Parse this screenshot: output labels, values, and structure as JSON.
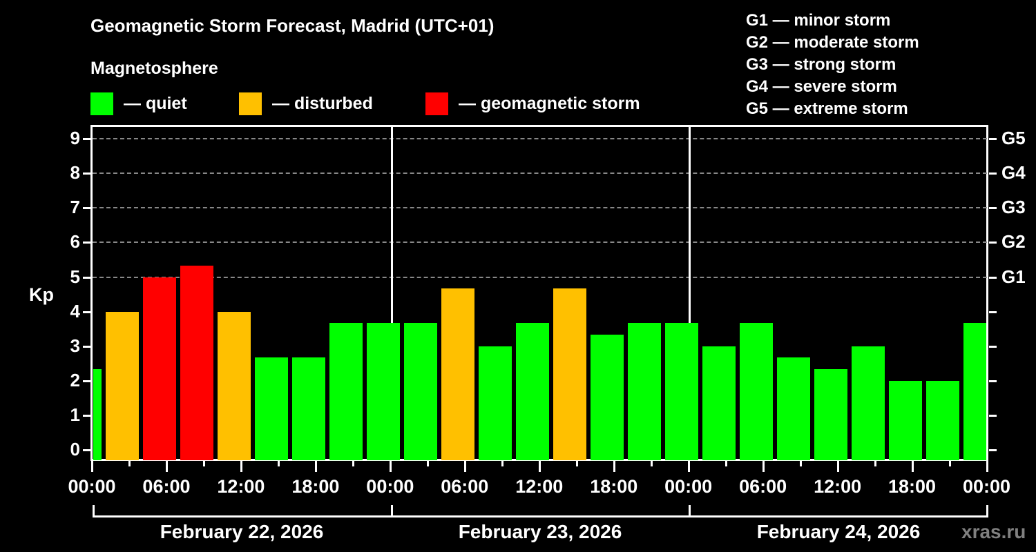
{
  "header": {
    "title": "Geomagnetic Storm Forecast, Madrid (UTC+01)",
    "subtitle": "Magnetosphere"
  },
  "legend": [
    {
      "label": "— quiet",
      "color": "#00ff00"
    },
    {
      "label": "— disturbed",
      "color": "#ffc000"
    },
    {
      "label": "— geomagnetic storm",
      "color": "#ff0000"
    }
  ],
  "g_legend": [
    "G1 — minor storm",
    "G2 — moderate storm",
    "G3 — strong storm",
    "G4 — severe storm",
    "G5 — extreme storm"
  ],
  "watermark": "xras.ru",
  "chart_data": {
    "type": "bar",
    "title": "Geomagnetic Storm Forecast, Madrid (UTC+01)",
    "xlabel": "",
    "ylabel": "Kp",
    "ylim": [
      -0.3,
      9.4
    ],
    "yticks": [
      0,
      1,
      2,
      3,
      4,
      5,
      6,
      7,
      8,
      9
    ],
    "y2_ticks": [
      {
        "value": 5,
        "label": "G1"
      },
      {
        "value": 6,
        "label": "G2"
      },
      {
        "value": 7,
        "label": "G3"
      },
      {
        "value": 8,
        "label": "G4"
      },
      {
        "value": 9,
        "label": "G5"
      }
    ],
    "grid": "dashed horizontal at Kp 5-9",
    "x_tick_labels": [
      "00:00",
      "06:00",
      "12:00",
      "18:00",
      "00:00",
      "06:00",
      "12:00",
      "18:00",
      "00:00",
      "06:00",
      "12:00",
      "18:00",
      "00:00"
    ],
    "dates": [
      "February 22, 2026",
      "February 23, 2026",
      "February 24, 2026"
    ],
    "categories": [
      "Feb22 00-03",
      "Feb22 03-06",
      "Feb22 06-09",
      "Feb22 09-12",
      "Feb22 12-15",
      "Feb22 15-18",
      "Feb22 18-21",
      "Feb22 21-24",
      "Feb23 00-03",
      "Feb23 03-06",
      "Feb23 06-09",
      "Feb23 09-12",
      "Feb23 12-15",
      "Feb23 15-18",
      "Feb23 18-21",
      "Feb23 21-24",
      "Feb24 00-03",
      "Feb24 03-06",
      "Feb24 06-09",
      "Feb24 09-12",
      "Feb24 12-15",
      "Feb24 15-18",
      "Feb24 18-21",
      "Feb24 21-24"
    ],
    "values": [
      2.33,
      4.0,
      5.0,
      5.33,
      4.0,
      2.67,
      2.67,
      3.67,
      3.67,
      3.67,
      4.67,
      3.0,
      3.67,
      4.67,
      3.33,
      3.67,
      3.67,
      3.0,
      3.67,
      2.67,
      2.33,
      3.0,
      2.0,
      2.0,
      3.67
    ],
    "bar_positions_note": "First and last bars are partial (edge of chart window, shifted by UTC+01 offset); 25 bars visible",
    "colors": [
      "#00ff00",
      "#ffc000",
      "#ff0000",
      "#ff0000",
      "#ffc000",
      "#00ff00",
      "#00ff00",
      "#00ff00",
      "#00ff00",
      "#00ff00",
      "#ffc000",
      "#00ff00",
      "#00ff00",
      "#ffc000",
      "#00ff00",
      "#00ff00",
      "#00ff00",
      "#00ff00",
      "#00ff00",
      "#00ff00",
      "#00ff00",
      "#00ff00",
      "#00ff00",
      "#00ff00",
      "#00ff00"
    ],
    "legend": [
      "quiet",
      "disturbed",
      "geomagnetic storm"
    ],
    "legend_position": "top"
  }
}
